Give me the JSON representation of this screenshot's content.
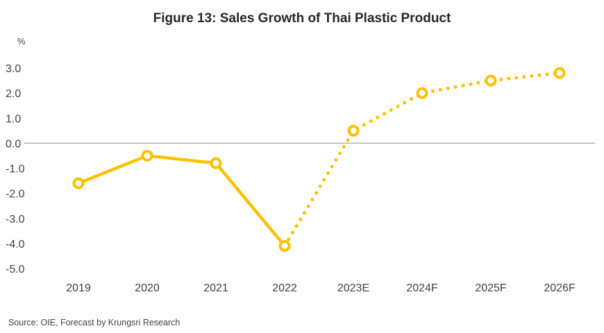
{
  "chart_data": {
    "type": "line",
    "title": "Figure 13: Sales Growth of Thai Plastic Product",
    "ylabel": "%",
    "xlabel": "",
    "categories": [
      "2019",
      "2020",
      "2021",
      "2022",
      "2023E",
      "2024F",
      "2025F",
      "2026F"
    ],
    "series": [
      {
        "name": "Sales Growth",
        "values": [
          -1.6,
          -0.5,
          -0.8,
          -4.1,
          0.5,
          2.0,
          2.5,
          2.8
        ],
        "color": "#FFC000",
        "actual_last_index": 3,
        "forecast_style": "dotted"
      }
    ],
    "yticks": [
      "3.0",
      "2.0",
      "1.0",
      "0.0",
      "-1.0",
      "-2.0",
      "-3.0",
      "-4.0",
      "-5.0"
    ],
    "ytick_values": [
      3,
      2,
      1,
      0,
      -1,
      -2,
      -3,
      -4,
      -5
    ],
    "ylim": [
      -5,
      3
    ],
    "grid": false,
    "zero_line": true,
    "legend": "none",
    "source": "Source: OIE, Forecast by Krungsri Research"
  }
}
